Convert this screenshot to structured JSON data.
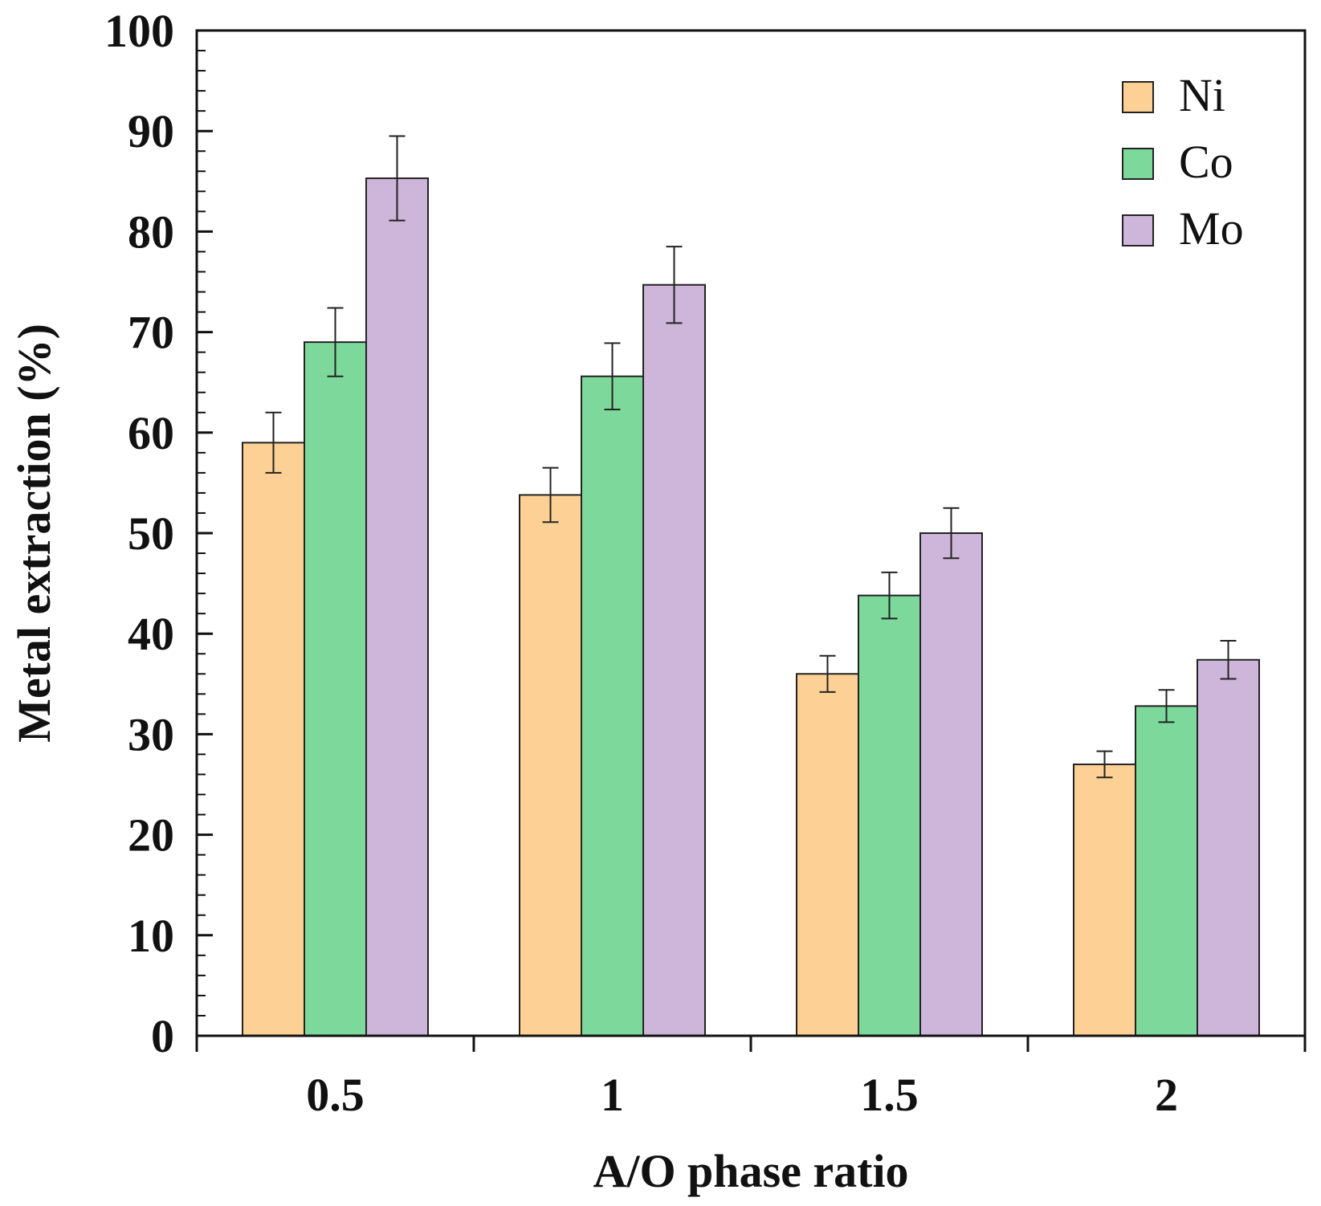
{
  "chart_data": {
    "type": "bar",
    "title": "",
    "xlabel": "A/O phase ratio",
    "ylabel": "Metal extraction (%)",
    "categories": [
      "0.5",
      "1",
      "1.5",
      "2"
    ],
    "ylim": [
      0,
      100
    ],
    "y_major_step": 10,
    "y_minor_step": 2,
    "y_ticks": [
      "0",
      "10",
      "20",
      "30",
      "40",
      "50",
      "60",
      "70",
      "80",
      "90",
      "100"
    ],
    "legend_position": "top-right",
    "series": [
      {
        "name": "Ni",
        "color": "#FDD196",
        "values": [
          59,
          53.8,
          36,
          27
        ],
        "errors": [
          3,
          2.7,
          1.8,
          1.3
        ]
      },
      {
        "name": "Co",
        "color": "#7DD99B",
        "values": [
          69,
          65.6,
          43.8,
          32.8
        ],
        "errors": [
          3.4,
          3.3,
          2.3,
          1.6
        ]
      },
      {
        "name": "Mo",
        "color": "#CEB5DA",
        "values": [
          85.3,
          74.7,
          50,
          37.4
        ],
        "errors": [
          4.2,
          3.8,
          2.5,
          1.9
        ]
      }
    ]
  }
}
